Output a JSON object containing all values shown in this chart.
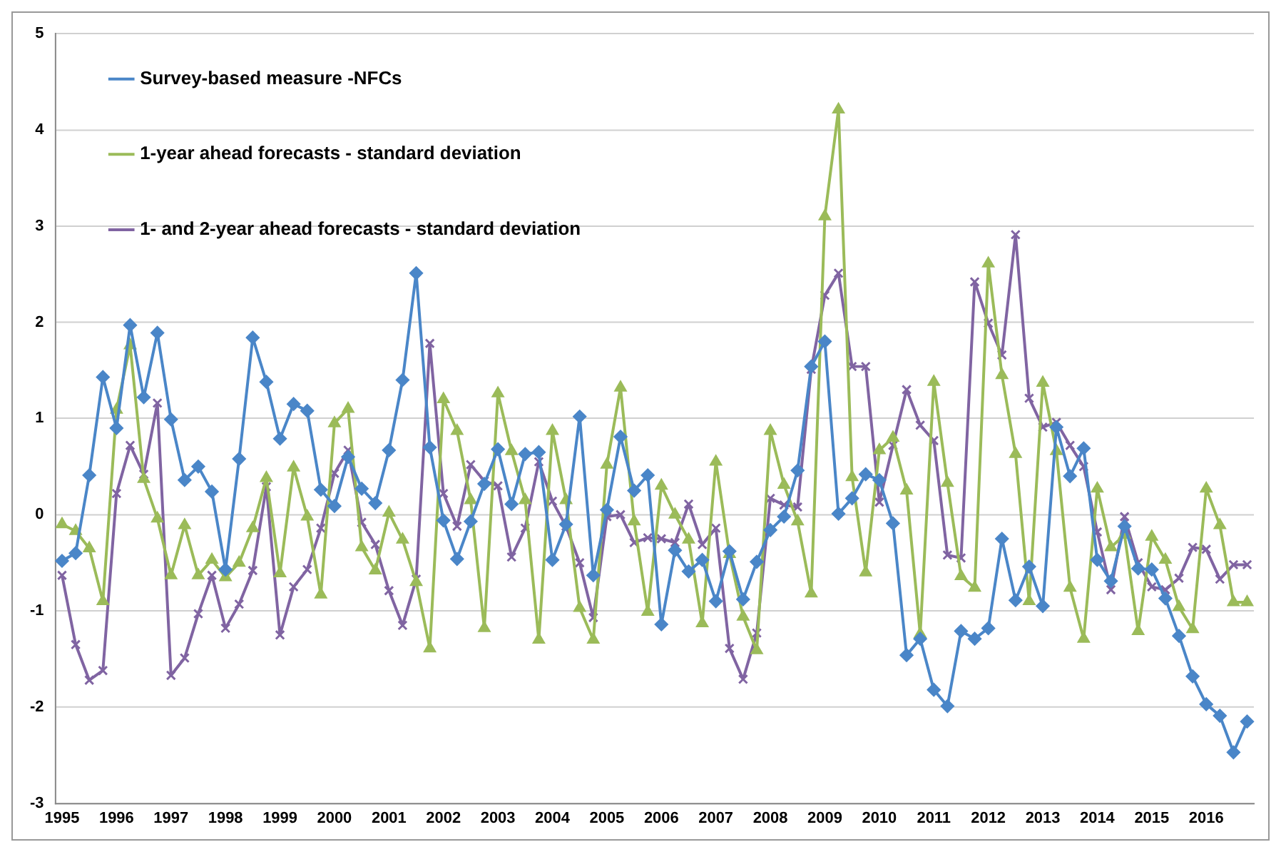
{
  "chart_data": {
    "type": "line",
    "categories": [
      "1995",
      null,
      null,
      null,
      "1996",
      null,
      null,
      null,
      "1997",
      null,
      null,
      null,
      "1998",
      null,
      null,
      null,
      "1999",
      null,
      null,
      null,
      "2000",
      null,
      null,
      null,
      "2001",
      null,
      null,
      null,
      "2002",
      null,
      null,
      null,
      "2003",
      null,
      null,
      null,
      "2004",
      null,
      null,
      null,
      "2005",
      null,
      null,
      null,
      "2006",
      null,
      null,
      null,
      "2007",
      null,
      null,
      null,
      "2008",
      null,
      null,
      null,
      "2009",
      null,
      null,
      null,
      "2010",
      null,
      null,
      null,
      "2011",
      null,
      null,
      null,
      "2012",
      null,
      null,
      null,
      "2013",
      null,
      null,
      null,
      "2014",
      null,
      null,
      null,
      "2015",
      null,
      null,
      null,
      "2016",
      null,
      null,
      null
    ],
    "series": [
      {
        "name": "Survey-based measure -NFCs",
        "color": "#4a86c8",
        "marker": "diamond",
        "values": [
          -0.48,
          -0.4,
          0.41,
          1.43,
          0.9,
          1.97,
          1.22,
          1.89,
          0.99,
          0.36,
          0.5,
          0.24,
          -0.57,
          0.58,
          1.84,
          1.38,
          0.79,
          1.15,
          1.08,
          0.26,
          0.09,
          0.6,
          0.27,
          0.12,
          0.67,
          1.4,
          2.51,
          0.7,
          -0.06,
          -0.46,
          -0.07,
          0.32,
          0.68,
          0.11,
          0.63,
          0.65,
          -0.47,
          -0.1,
          1.02,
          -0.63,
          0.05,
          0.81,
          0.25,
          0.41,
          -1.14,
          -0.37,
          -0.59,
          -0.47,
          -0.9,
          -0.38,
          -0.88,
          -0.49,
          -0.16,
          -0.02,
          0.46,
          1.54,
          1.8,
          0.01,
          0.17,
          0.42,
          0.36,
          -0.09,
          -1.46,
          -1.29,
          -1.82,
          -1.99,
          -1.21,
          -1.29,
          -1.18,
          -0.25,
          -0.89,
          -0.54,
          -0.95,
          0.91,
          0.4,
          0.69,
          -0.47,
          -0.69,
          -0.12,
          -0.56,
          -0.57,
          -0.87,
          -1.26,
          -1.68,
          -1.97,
          -2.09,
          -2.47,
          -2.15
        ]
      },
      {
        "name": "1-year ahead forecasts - standard deviation",
        "color": "#9bbb59",
        "marker": "triangle",
        "values": [
          -0.1,
          -0.17,
          -0.35,
          -0.9,
          1.09,
          1.76,
          0.37,
          -0.04,
          -0.63,
          -0.11,
          -0.63,
          -0.47,
          -0.65,
          -0.5,
          -0.14,
          0.38,
          -0.61,
          0.49,
          -0.02,
          -0.83,
          0.95,
          1.1,
          -0.34,
          -0.58,
          0.02,
          -0.26,
          -0.7,
          -1.39,
          1.2,
          0.87,
          0.15,
          -1.18,
          1.26,
          0.66,
          0.15,
          -1.3,
          0.87,
          0.15,
          -0.97,
          -1.3,
          0.52,
          1.32,
          -0.07,
          -1.01,
          0.3,
          0.0,
          -0.26,
          -1.13,
          0.55,
          -0.41,
          -1.06,
          -1.41,
          0.87,
          0.31,
          -0.07,
          -0.82,
          3.1,
          4.21,
          0.39,
          -0.6,
          0.67,
          0.8,
          0.25,
          -1.24,
          1.38,
          0.33,
          -0.64,
          -0.76,
          2.61,
          1.45,
          0.63,
          -0.9,
          1.37,
          0.66,
          -0.76,
          -1.29,
          0.27,
          -0.34,
          -0.21,
          -1.21,
          -0.23,
          -0.47,
          -0.96,
          -1.19,
          0.27,
          -0.11,
          -0.91,
          -0.91
        ]
      },
      {
        "name": "1- and 2-year ahead forecasts - standard deviation",
        "color": "#8064a2",
        "marker": "cross",
        "values": [
          -0.63,
          -1.35,
          -1.72,
          -1.62,
          0.22,
          0.72,
          0.42,
          1.16,
          -1.67,
          -1.49,
          -1.03,
          -0.63,
          -1.18,
          -0.93,
          -0.58,
          0.29,
          -1.25,
          -0.75,
          -0.57,
          -0.14,
          0.43,
          0.67,
          -0.08,
          -0.31,
          -0.79,
          -1.15,
          -0.67,
          1.78,
          0.22,
          -0.12,
          0.52,
          0.35,
          0.3,
          -0.44,
          -0.14,
          0.55,
          0.14,
          -0.12,
          -0.5,
          -1.07,
          -0.02,
          0.0,
          -0.29,
          -0.24,
          -0.25,
          -0.29,
          0.11,
          -0.31,
          -0.14,
          -1.39,
          -1.71,
          -1.23,
          0.17,
          0.1,
          0.08,
          1.51,
          2.28,
          2.51,
          1.54,
          1.54,
          0.13,
          0.72,
          1.3,
          0.93,
          0.77,
          -0.42,
          -0.45,
          2.42,
          1.99,
          1.66,
          2.91,
          1.21,
          0.91,
          0.96,
          0.72,
          0.5,
          -0.18,
          -0.78,
          -0.02,
          -0.5,
          -0.75,
          -0.78,
          -0.66,
          -0.34,
          -0.36,
          -0.67,
          -0.52,
          -0.52
        ]
      }
    ],
    "ylim": [
      -3,
      5
    ],
    "yticks": [
      -3,
      -2,
      -1,
      0,
      1,
      2,
      3,
      4,
      5
    ],
    "grid": "y",
    "legend": "top left"
  }
}
